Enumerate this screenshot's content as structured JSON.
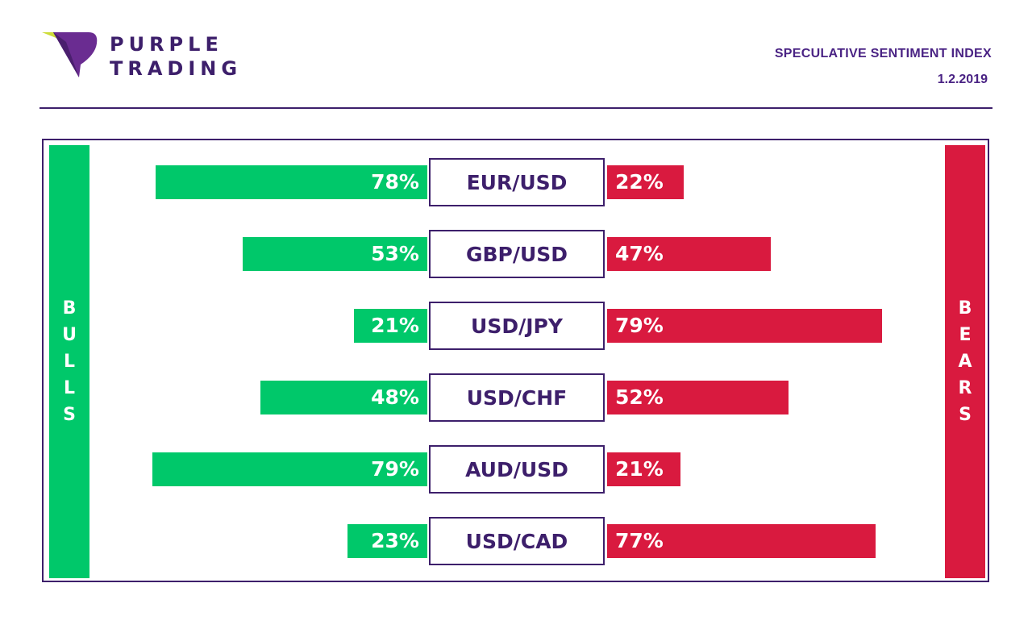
{
  "brand": {
    "line1": "PURPLE",
    "line2": "TRADING"
  },
  "header": {
    "title": "SPECULATIVE SENTIMENT INDEX",
    "date": "1.2.2019"
  },
  "sides": {
    "bulls": "BULLS",
    "bears": "BEARS"
  },
  "colors": {
    "bulls": "#00c86a",
    "bears": "#d91a3f",
    "brand": "#3d1f6b",
    "accent": "#cddc39"
  },
  "chart_data": {
    "type": "bar",
    "categories": [
      "EUR/USD",
      "GBP/USD",
      "USD/JPY",
      "USD/CHF",
      "AUD/USD",
      "USD/CAD"
    ],
    "series": [
      {
        "name": "BULLS",
        "values": [
          78,
          53,
          21,
          48,
          79,
          23
        ]
      },
      {
        "name": "BEARS",
        "values": [
          22,
          47,
          79,
          52,
          21,
          77
        ]
      }
    ],
    "labels": {
      "bulls": [
        "78%",
        "53%",
        "21%",
        "48%",
        "79%",
        "23%"
      ],
      "bears": [
        "22%",
        "47%",
        "79%",
        "52%",
        "21%",
        "77%"
      ]
    },
    "title": "SPECULATIVE SENTIMENT INDEX",
    "ylim": [
      0,
      100
    ]
  }
}
